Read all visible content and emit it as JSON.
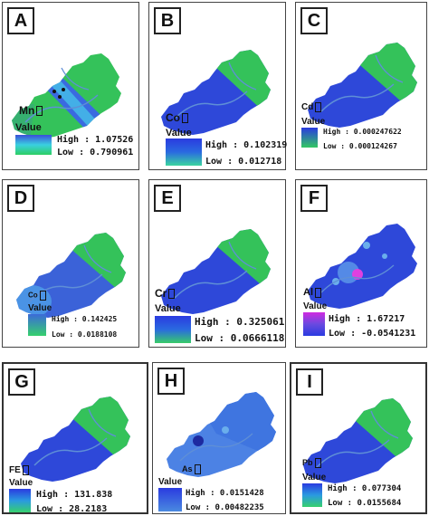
{
  "panels": [
    {
      "letter": "A",
      "element": "Mn",
      "value_label": "Value",
      "high": "High : 1.07526",
      "low": "Low : 0.790961",
      "high_color": "#3a4fd8",
      "low_color": "#2ecf63"
    },
    {
      "letter": "B",
      "element": "Co",
      "value_label": "Value",
      "high": "High : 0.102319",
      "low": "Low : 0.012718",
      "high_color": "#2a3be0",
      "low_color": "#3ad5a0"
    },
    {
      "letter": "C",
      "element": "Cd",
      "value_label": "Value",
      "high": "High : 0.000247622",
      "low": "Low : 0.000124267",
      "high_color": "#2a3be0",
      "low_color": "#33c863"
    },
    {
      "letter": "D",
      "element": "Co",
      "value_label": "Value",
      "high": "High : 0.142425",
      "low": "Low : 0.0188108",
      "high_color": "#3b6ad8",
      "low_color": "#36d06e"
    },
    {
      "letter": "E",
      "element": "Cr",
      "value_label": "Value",
      "high": "High : 0.325061",
      "low": "Low : 0.0666118",
      "high_color": "#2a3be0",
      "low_color": "#38cc6a"
    },
    {
      "letter": "F",
      "element": "Al",
      "value_label": "Value",
      "high": "High : 1.67217",
      "low": "Low : -0.0541231",
      "high_color": "#d02ae0",
      "low_color": "#2a3be0"
    },
    {
      "letter": "G",
      "element": "FE",
      "value_label": "Value",
      "high": "High : 131.838",
      "low": "Low : 28.2183",
      "high_color": "#2a3be0",
      "low_color": "#36d06e"
    },
    {
      "letter": "H",
      "element": "As",
      "value_label": "Value",
      "high": "High : 0.0151428",
      "low": "Low : 0.00482235",
      "high_color": "#2a3be0",
      "low_color": "#4a8ae0"
    },
    {
      "letter": "I",
      "element": "Pb",
      "value_label": "Value",
      "high": "High : 0.077304",
      "low": "Low : 0.0155684",
      "high_color": "#2a3be0",
      "low_color": "#36d06e"
    }
  ],
  "colors": {
    "blue": "#2e48d9",
    "green": "#34c25a",
    "river": "#5f8fd6",
    "magenta": "#e040e0"
  }
}
